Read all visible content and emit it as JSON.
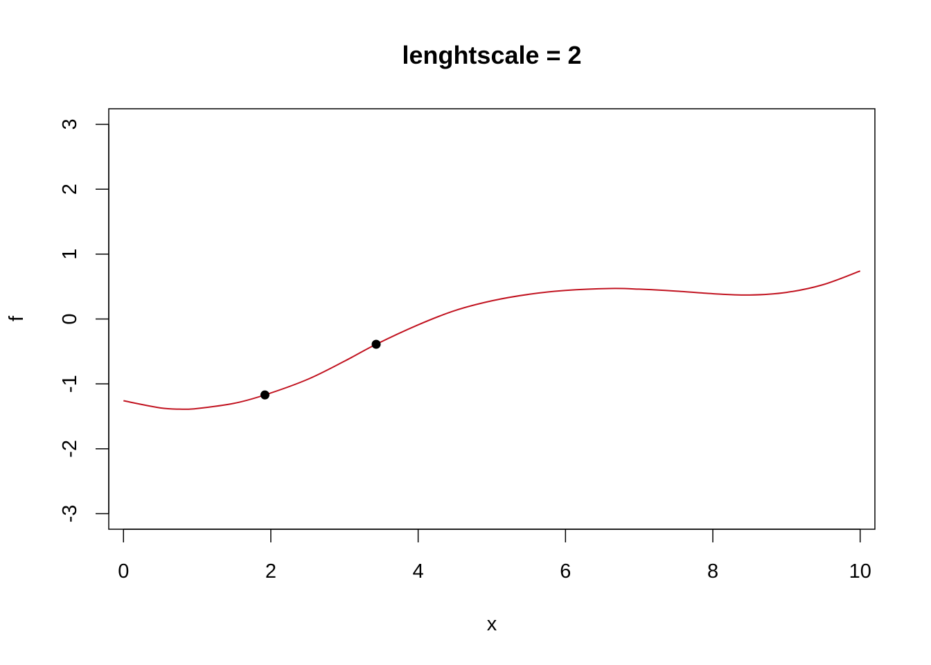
{
  "chart_data": {
    "type": "line",
    "title": "lenghtscale = 2",
    "xlabel": "x",
    "ylabel": "f",
    "xlim": [
      -0.2,
      10.2
    ],
    "ylim": [
      -3.24,
      3.24
    ],
    "xticks": [
      0,
      2,
      4,
      6,
      8,
      10
    ],
    "yticks": [
      -3,
      -2,
      -1,
      0,
      1,
      2,
      3
    ],
    "xtick_labels": [
      "0",
      "2",
      "4",
      "6",
      "8",
      "10"
    ],
    "ytick_labels": [
      "-3",
      "-2",
      "-1",
      "0",
      "1",
      "2",
      "3"
    ],
    "grid": false,
    "legend": "none",
    "series": [
      {
        "kind": "line",
        "color": "#c1121f",
        "x": [
          0,
          0.5,
          0.8,
          1.0,
          1.5,
          1.92,
          2.5,
          3.0,
          3.43,
          4.0,
          4.5,
          5.0,
          5.5,
          6.0,
          6.6,
          7.0,
          7.5,
          8.0,
          8.5,
          9.0,
          9.5,
          10.0
        ],
        "y": [
          -1.26,
          -1.37,
          -1.39,
          -1.38,
          -1.3,
          -1.17,
          -0.93,
          -0.65,
          -0.39,
          -0.09,
          0.13,
          0.28,
          0.38,
          0.44,
          0.47,
          0.46,
          0.43,
          0.39,
          0.37,
          0.41,
          0.53,
          0.74
        ]
      },
      {
        "kind": "points",
        "color": "#000000",
        "x": [
          1.92,
          3.43
        ],
        "y": [
          -1.17,
          -0.39
        ]
      }
    ]
  }
}
